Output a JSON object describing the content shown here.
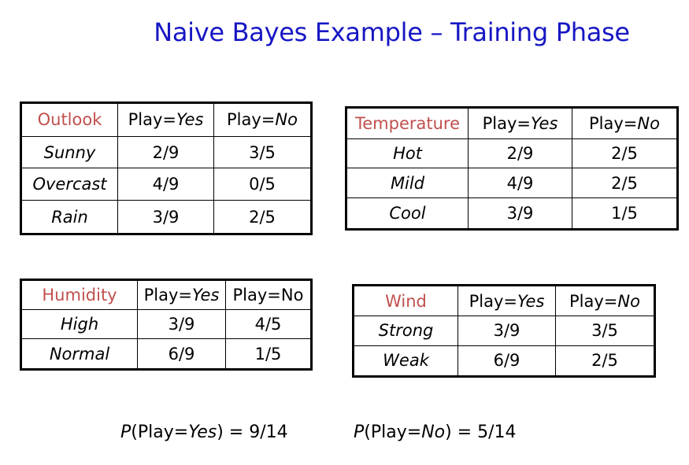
{
  "title": "Naive Bayes Example – Training Phase",
  "accent_title_color": "#1717c4",
  "accent_header_color": "#c0504d",
  "headers": {
    "play": "Play=",
    "yes": "Yes",
    "no": "No"
  },
  "outlook": {
    "name": "Outlook",
    "rows": [
      {
        "value": "Sunny",
        "yes": "2/9",
        "no": "3/5"
      },
      {
        "value": "Overcast",
        "yes": "4/9",
        "no": "0/5"
      },
      {
        "value": "Rain",
        "yes": "3/9",
        "no": "2/5"
      }
    ]
  },
  "temperature": {
    "name": "Temperature",
    "rows": [
      {
        "value": "Hot",
        "yes": "2/9",
        "no": "2/5"
      },
      {
        "value": "Mild",
        "yes": "4/9",
        "no": "2/5"
      },
      {
        "value": "Cool",
        "yes": "3/9",
        "no": "1/5"
      }
    ]
  },
  "humidity": {
    "name": "Humidity",
    "col_yes": "Play=Yes",
    "col_no": "Play=No",
    "rows": [
      {
        "value": "High",
        "yes": "3/9",
        "no": "4/5"
      },
      {
        "value": "Normal",
        "yes": "6/9",
        "no": "1/5"
      }
    ]
  },
  "wind": {
    "name": "Wind",
    "rows": [
      {
        "value": "Strong",
        "yes": "3/9",
        "no": "3/5"
      },
      {
        "value": "Weak",
        "yes": "6/9",
        "no": "2/5"
      }
    ]
  },
  "priors": {
    "p": "P",
    "yes_open": "(Play=",
    "yes_word": "Yes",
    "yes_value": ") = 9/14",
    "no_open": "(Play=",
    "no_word": "No",
    "no_value": ") = 5/14"
  }
}
